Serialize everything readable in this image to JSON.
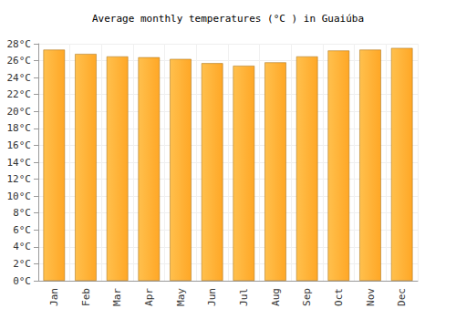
{
  "chart_data": {
    "type": "bar",
    "title": "Average monthly temperatures (°C ) in Guaiúba",
    "categories": [
      "Jan",
      "Feb",
      "Mar",
      "Apr",
      "May",
      "Jun",
      "Jul",
      "Aug",
      "Sep",
      "Oct",
      "Nov",
      "Dec"
    ],
    "values": [
      27.3,
      26.8,
      26.5,
      26.4,
      26.2,
      25.7,
      25.4,
      25.8,
      26.5,
      27.2,
      27.3,
      27.5
    ],
    "color": "#ffa726",
    "ylim": [
      0,
      28
    ],
    "yticks": [
      {
        "value": 0,
        "label": "0°C"
      },
      {
        "value": 2,
        "label": "2°C"
      },
      {
        "value": 4,
        "label": "4°C"
      },
      {
        "value": 6,
        "label": "6°C"
      },
      {
        "value": 8,
        "label": "8°C"
      },
      {
        "value": 10,
        "label": "10°C"
      },
      {
        "value": 12,
        "label": "12°C"
      },
      {
        "value": 14,
        "label": "14°C"
      },
      {
        "value": 16,
        "label": "16°C"
      },
      {
        "value": 18,
        "label": "18°C"
      },
      {
        "value": 20,
        "label": "20°C"
      },
      {
        "value": 22,
        "label": "22°C"
      },
      {
        "value": 24,
        "label": "24°C"
      },
      {
        "value": 26,
        "label": "26°C"
      },
      {
        "value": 28,
        "label": "28°C"
      }
    ],
    "grid": true
  }
}
